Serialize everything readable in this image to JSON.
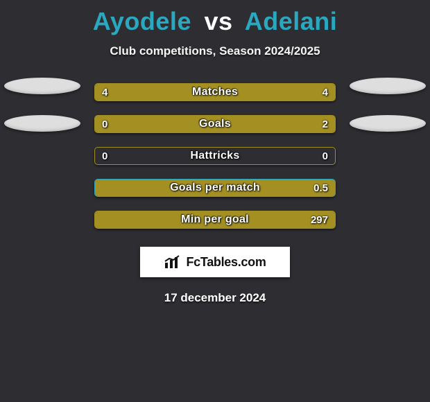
{
  "header": {
    "player1": "Ayodele",
    "vs": "vs",
    "player2": "Adelani",
    "title_color_p1": "#2aa8c0",
    "title_color_vs": "#ffffff",
    "title_color_p2": "#2aa8c0",
    "subtitle": "Club competitions, Season 2024/2025"
  },
  "colors": {
    "background": "#2e2e32",
    "border_primary": "#a38f22",
    "fill_primary": "#a38f22",
    "border_secondary": "#2aa8c0",
    "pill_bg": "#dedede",
    "label_text": "#ffffff"
  },
  "ellipses": {
    "left_count": 2,
    "right_count": 2
  },
  "bars": [
    {
      "label": "Matches",
      "left_value": "4",
      "right_value": "4",
      "border_color": "#a38f22",
      "left_fill_color": "#a38f22",
      "right_fill_color": "#a38f22",
      "left_fill_pct": 50,
      "right_fill_pct": 50
    },
    {
      "label": "Goals",
      "left_value": "0",
      "right_value": "2",
      "border_color": "#a38f22",
      "left_fill_color": "#a38f22",
      "right_fill_color": "#a38f22",
      "left_fill_pct": 18,
      "right_fill_pct": 82
    },
    {
      "label": "Hattricks",
      "left_value": "0",
      "right_value": "0",
      "border_color": "#a38f22",
      "left_fill_color": "#a38f22",
      "right_fill_color": "#a38f22",
      "left_fill_pct": 0,
      "right_fill_pct": 0
    },
    {
      "label": "Goals per match",
      "left_value": "",
      "right_value": "0.5",
      "border_color": "#2aa8c0",
      "left_fill_color": "#2aa8c0",
      "right_fill_color": "#a38f22",
      "left_fill_pct": 0,
      "right_fill_pct": 100
    },
    {
      "label": "Min per goal",
      "left_value": "",
      "right_value": "297",
      "border_color": "#a38f22",
      "left_fill_color": "#a38f22",
      "right_fill_color": "#a38f22",
      "left_fill_pct": 0,
      "right_fill_pct": 100
    }
  ],
  "logo": {
    "text": "FcTables.com",
    "icon_color": "#111"
  },
  "date": "17 december 2024"
}
